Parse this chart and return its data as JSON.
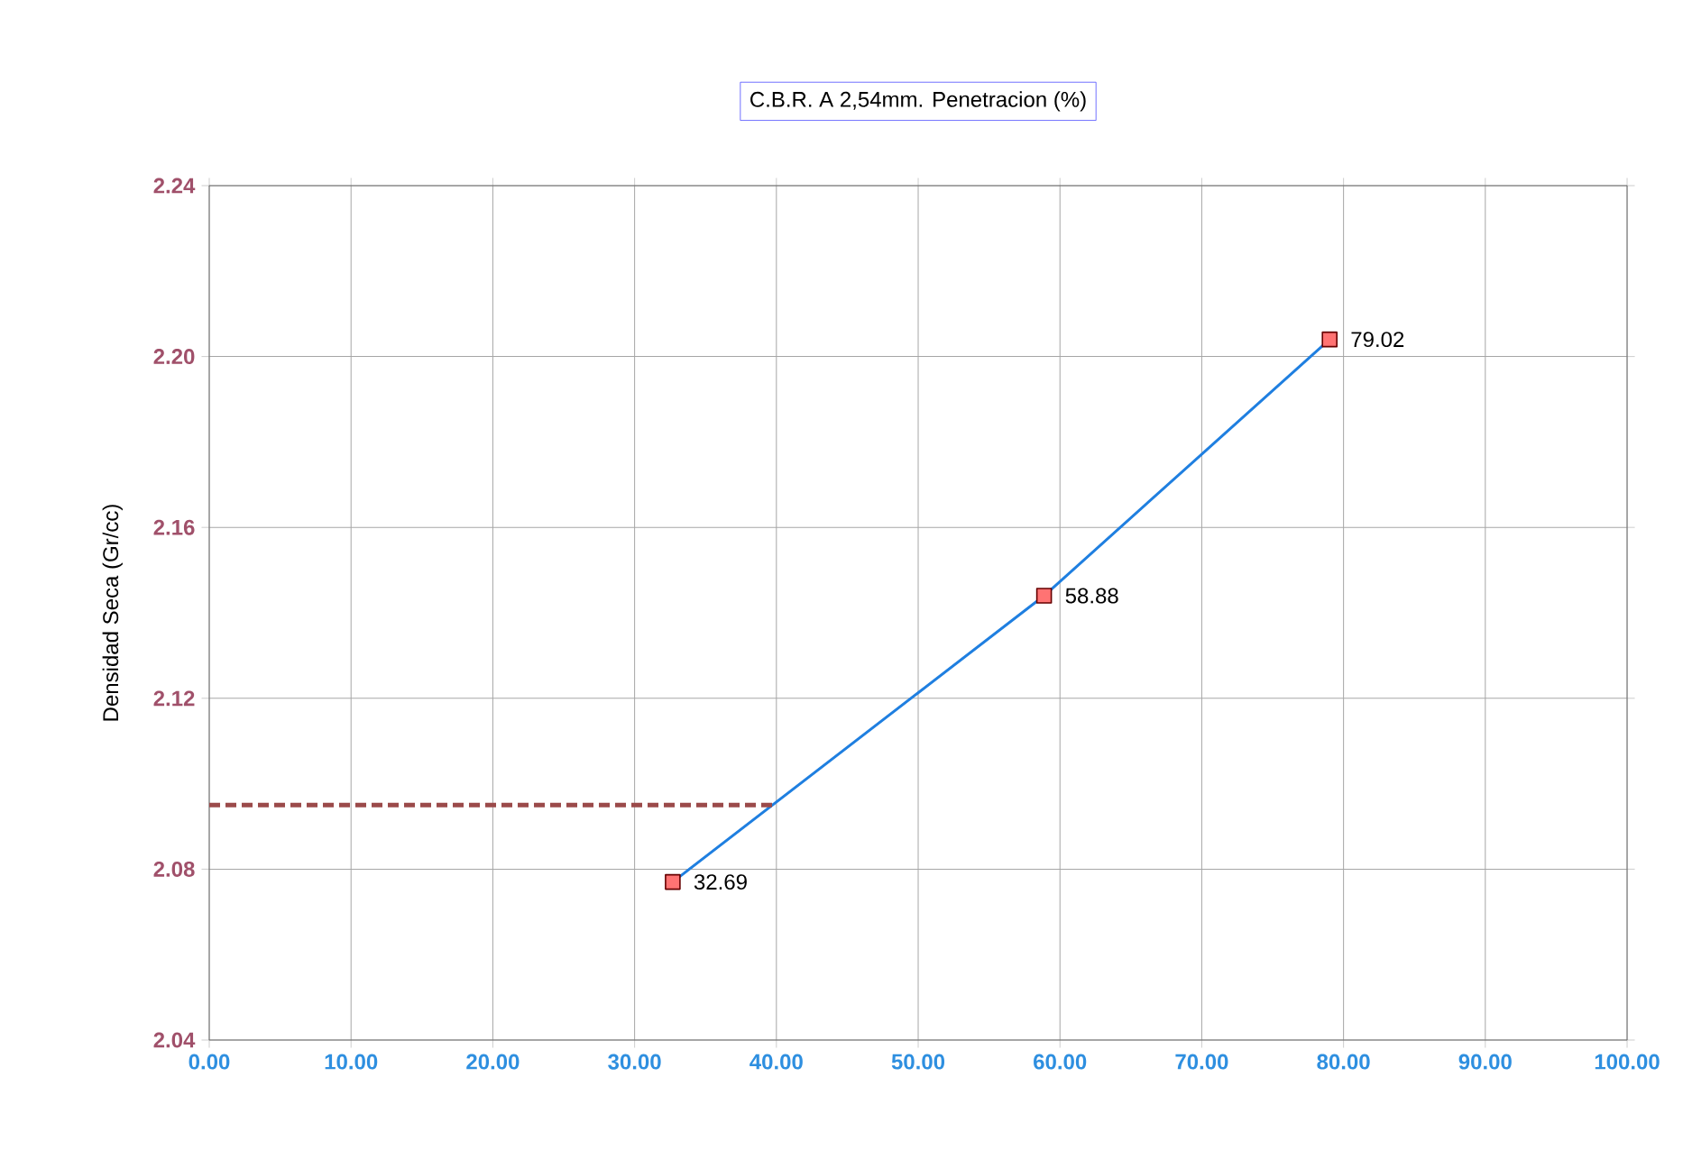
{
  "chart_data": {
    "type": "line",
    "title": "C.B.R. A 2,54mm. Penetracion (%)",
    "ylabel": "Densidad Seca (Gr/cc)",
    "xlim": [
      0,
      100
    ],
    "xticks": [
      {
        "value": 0,
        "label": "0.00"
      },
      {
        "value": 10,
        "label": "10.00"
      },
      {
        "value": 20,
        "label": "20.00"
      },
      {
        "value": 30,
        "label": "30.00"
      },
      {
        "value": 40,
        "label": "40.00"
      },
      {
        "value": 50,
        "label": "50.00"
      },
      {
        "value": 60,
        "label": "60.00"
      },
      {
        "value": 70,
        "label": "70.00"
      },
      {
        "value": 80,
        "label": "80.00"
      },
      {
        "value": 90,
        "label": "90.00"
      },
      {
        "value": 100,
        "label": "100.00"
      }
    ],
    "ylim": [
      2.04,
      2.24
    ],
    "yticks": [
      {
        "value": 2.04,
        "label": "2.04"
      },
      {
        "value": 2.08,
        "label": "2.08"
      },
      {
        "value": 2.12,
        "label": "2.12"
      },
      {
        "value": 2.16,
        "label": "2.16"
      },
      {
        "value": 2.2,
        "label": "2.20"
      },
      {
        "value": 2.24,
        "label": "2.24"
      }
    ],
    "grid": true,
    "annotations": [
      {
        "text": "32.69",
        "x": 32.69,
        "y": 2.077
      },
      {
        "text": "58.88",
        "x": 58.88,
        "y": 2.144
      },
      {
        "text": "79.02",
        "x": 79.02,
        "y": 2.204
      }
    ],
    "series": [
      {
        "x": [
          32.69,
          58.88,
          79.02
        ],
        "values": [
          2.077,
          2.144,
          2.204
        ],
        "color": "#1f7fe0",
        "marker": "square",
        "line_style": "solid"
      },
      {
        "x": [
          0,
          40
        ],
        "values": [
          2.095,
          2.095
        ],
        "color": "#9b4a4a",
        "marker": "none",
        "line_style": "dashed"
      }
    ]
  }
}
